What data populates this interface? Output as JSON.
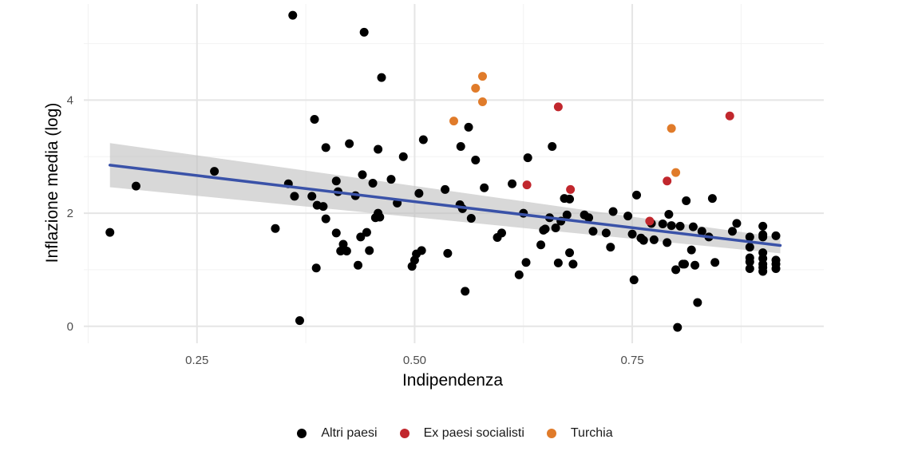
{
  "chart_data": {
    "type": "scatter",
    "xlabel": "Indipendenza",
    "ylabel": "Inflazione media (log)",
    "xlim": [
      0.12,
      0.97
    ],
    "ylim": [
      -0.3,
      5.7
    ],
    "x_ticks": [
      {
        "value": 0.25,
        "label": "0.25"
      },
      {
        "value": 0.5,
        "label": "0.50"
      },
      {
        "value": 0.75,
        "label": "0.75"
      }
    ],
    "y_ticks": [
      {
        "value": 0,
        "label": "0"
      },
      {
        "value": 2,
        "label": "2"
      },
      {
        "value": 4,
        "label": "4"
      }
    ],
    "grid": true,
    "legend_position": "bottom",
    "colors": {
      "altri": "#000000",
      "ex": "#c1272d",
      "turchia": "#e07b2a",
      "fit_line": "#3a52a8",
      "ci_band": "#bebebe",
      "grid_major": "#e5e5e5",
      "grid_minor": "#f2f2f2"
    },
    "series": [
      {
        "name": "Altri paesi",
        "key": "altri",
        "points": [
          [
            0.15,
            1.66
          ],
          [
            0.18,
            2.48
          ],
          [
            0.27,
            2.74
          ],
          [
            0.34,
            1.73
          ],
          [
            0.355,
            2.52
          ],
          [
            0.36,
            5.5
          ],
          [
            0.362,
            2.3
          ],
          [
            0.368,
            0.1
          ],
          [
            0.382,
            2.3
          ],
          [
            0.385,
            3.66
          ],
          [
            0.387,
            1.03
          ],
          [
            0.388,
            2.14
          ],
          [
            0.395,
            2.12
          ],
          [
            0.398,
            1.9
          ],
          [
            0.398,
            3.16
          ],
          [
            0.41,
            1.65
          ],
          [
            0.41,
            2.57
          ],
          [
            0.412,
            2.38
          ],
          [
            0.415,
            1.33
          ],
          [
            0.418,
            1.45
          ],
          [
            0.422,
            1.33
          ],
          [
            0.425,
            3.23
          ],
          [
            0.432,
            2.31
          ],
          [
            0.435,
            1.08
          ],
          [
            0.438,
            1.58
          ],
          [
            0.44,
            2.68
          ],
          [
            0.442,
            5.2
          ],
          [
            0.445,
            1.66
          ],
          [
            0.448,
            1.34
          ],
          [
            0.452,
            2.53
          ],
          [
            0.455,
            1.92
          ],
          [
            0.458,
            2.0
          ],
          [
            0.458,
            3.13
          ],
          [
            0.46,
            1.93
          ],
          [
            0.462,
            4.4
          ],
          [
            0.473,
            2.6
          ],
          [
            0.48,
            2.18
          ],
          [
            0.487,
            3.0
          ],
          [
            0.497,
            1.06
          ],
          [
            0.5,
            1.17
          ],
          [
            0.502,
            1.28
          ],
          [
            0.505,
            2.35
          ],
          [
            0.508,
            1.34
          ],
          [
            0.51,
            3.3
          ],
          [
            0.535,
            2.42
          ],
          [
            0.538,
            1.29
          ],
          [
            0.552,
            2.15
          ],
          [
            0.553,
            3.18
          ],
          [
            0.555,
            2.08
          ],
          [
            0.558,
            0.62
          ],
          [
            0.562,
            3.52
          ],
          [
            0.565,
            1.91
          ],
          [
            0.57,
            2.94
          ],
          [
            0.58,
            2.45
          ],
          [
            0.595,
            1.57
          ],
          [
            0.6,
            1.65
          ],
          [
            0.612,
            2.52
          ],
          [
            0.62,
            0.91
          ],
          [
            0.625,
            2.0
          ],
          [
            0.628,
            1.13
          ],
          [
            0.63,
            2.98
          ],
          [
            0.645,
            1.44
          ],
          [
            0.648,
            1.7
          ],
          [
            0.65,
            1.72
          ],
          [
            0.655,
            1.92
          ],
          [
            0.658,
            3.18
          ],
          [
            0.662,
            1.74
          ],
          [
            0.665,
            1.12
          ],
          [
            0.668,
            1.86
          ],
          [
            0.672,
            2.26
          ],
          [
            0.675,
            1.97
          ],
          [
            0.678,
            1.3
          ],
          [
            0.678,
            2.25
          ],
          [
            0.682,
            1.1
          ],
          [
            0.695,
            1.97
          ],
          [
            0.7,
            1.92
          ],
          [
            0.705,
            1.68
          ],
          [
            0.72,
            1.65
          ],
          [
            0.725,
            1.4
          ],
          [
            0.728,
            2.03
          ],
          [
            0.745,
            1.95
          ],
          [
            0.75,
            1.63
          ],
          [
            0.752,
            0.82
          ],
          [
            0.755,
            2.32
          ],
          [
            0.76,
            1.56
          ],
          [
            0.763,
            1.52
          ],
          [
            0.772,
            1.82
          ],
          [
            0.775,
            1.53
          ],
          [
            0.785,
            1.81
          ],
          [
            0.79,
            1.48
          ],
          [
            0.792,
            1.98
          ],
          [
            0.795,
            1.78
          ],
          [
            0.8,
            1.0
          ],
          [
            0.802,
            -0.02
          ],
          [
            0.805,
            1.77
          ],
          [
            0.808,
            1.1
          ],
          [
            0.81,
            1.1
          ],
          [
            0.812,
            2.22
          ],
          [
            0.818,
            1.35
          ],
          [
            0.82,
            1.76
          ],
          [
            0.822,
            1.08
          ],
          [
            0.825,
            0.42
          ],
          [
            0.83,
            1.68
          ],
          [
            0.838,
            1.58
          ],
          [
            0.842,
            2.26
          ],
          [
            0.845,
            1.13
          ],
          [
            0.865,
            1.68
          ],
          [
            0.87,
            1.82
          ],
          [
            0.885,
            1.02
          ],
          [
            0.885,
            1.14
          ],
          [
            0.885,
            1.21
          ],
          [
            0.885,
            1.4
          ],
          [
            0.885,
            1.58
          ],
          [
            0.9,
            0.97
          ],
          [
            0.9,
            1.04
          ],
          [
            0.9,
            1.1
          ],
          [
            0.9,
            1.2
          ],
          [
            0.9,
            1.3
          ],
          [
            0.9,
            1.58
          ],
          [
            0.9,
            1.62
          ],
          [
            0.9,
            1.77
          ],
          [
            0.915,
            1.02
          ],
          [
            0.915,
            1.1
          ],
          [
            0.915,
            1.17
          ],
          [
            0.915,
            1.6
          ]
        ]
      },
      {
        "name": "Ex paesi socialisti",
        "key": "ex",
        "points": [
          [
            0.629,
            2.5
          ],
          [
            0.665,
            3.88
          ],
          [
            0.679,
            2.42
          ],
          [
            0.77,
            1.86
          ],
          [
            0.79,
            2.57
          ],
          [
            0.862,
            3.72
          ]
        ]
      },
      {
        "name": "Turchia",
        "key": "turchia",
        "points": [
          [
            0.545,
            3.63
          ],
          [
            0.57,
            4.21
          ],
          [
            0.578,
            3.97
          ],
          [
            0.578,
            4.42
          ],
          [
            0.795,
            3.5
          ],
          [
            0.8,
            2.72
          ]
        ]
      }
    ],
    "fit_line": {
      "x": [
        0.15,
        0.92
      ],
      "y": [
        2.85,
        1.43
      ],
      "ci_lower": [
        2.46,
        1.29
      ],
      "ci_upper": [
        3.24,
        1.57
      ]
    }
  }
}
